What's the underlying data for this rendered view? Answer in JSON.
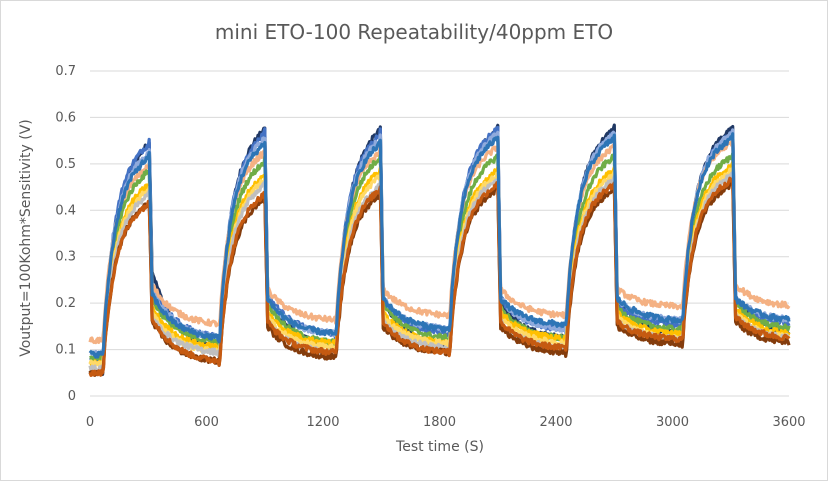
{
  "chart_data": {
    "type": "line",
    "title": "mini ETO-100 Repeatability/40ppm ETO",
    "xlabel": "Test time (S)",
    "ylabel": "Voutput=100Kohm*Sensitivity (V)",
    "xlim": [
      0,
      3600
    ],
    "ylim": [
      0,
      0.7
    ],
    "x_ticks": [
      0,
      600,
      1200,
      1800,
      2400,
      3000,
      3600
    ],
    "y_ticks": [
      0,
      0.1,
      0.2,
      0.3,
      0.4,
      0.5,
      0.6,
      0.7
    ],
    "y_tick_labels": [
      "0",
      "0.1",
      "0.2",
      "0.3",
      "0.4",
      "0.5",
      "0.6",
      "0.7"
    ],
    "grid": "horizontal",
    "legend": "none",
    "pulses": {
      "on_times": [
        65,
        665,
        1265,
        1850,
        2450,
        3050
      ],
      "off_times": [
        305,
        900,
        1495,
        2100,
        2700,
        3310
      ]
    },
    "series": [
      {
        "color": "#203864",
        "base": [
          0.05,
          0.09,
          0.1,
          0.1,
          0.12,
          0.13
        ],
        "peak": [
          0.55,
          0.58,
          0.58,
          0.58,
          0.58,
          0.58
        ],
        "tail_at_off": [
          0.27,
          0.22,
          0.21,
          0.2,
          0.21,
          0.21
        ]
      },
      {
        "color": "#4472c4",
        "base": [
          0.08,
          0.12,
          0.13,
          0.13,
          0.14,
          0.15
        ],
        "peak": [
          0.55,
          0.57,
          0.57,
          0.58,
          0.57,
          0.57
        ],
        "tail_at_off": [
          0.24,
          0.22,
          0.21,
          0.21,
          0.2,
          0.21
        ]
      },
      {
        "color": "#8faadc",
        "base": [
          0.09,
          0.12,
          0.13,
          0.14,
          0.14,
          0.16
        ],
        "peak": [
          0.53,
          0.56,
          0.56,
          0.57,
          0.57,
          0.57
        ],
        "tail_at_off": [
          0.23,
          0.21,
          0.21,
          0.21,
          0.21,
          0.21
        ]
      },
      {
        "color": "#f4b183",
        "base": [
          0.12,
          0.15,
          0.16,
          0.17,
          0.17,
          0.19
        ],
        "peak": [
          0.5,
          0.53,
          0.53,
          0.54,
          0.54,
          0.55
        ],
        "tail_at_off": [
          0.24,
          0.23,
          0.23,
          0.23,
          0.23,
          0.24
        ]
      },
      {
        "color": "#70ad47",
        "base": [
          0.08,
          0.11,
          0.11,
          0.12,
          0.12,
          0.14
        ],
        "peak": [
          0.49,
          0.51,
          0.52,
          0.52,
          0.52,
          0.52
        ],
        "tail_at_off": [
          0.21,
          0.2,
          0.2,
          0.19,
          0.19,
          0.2
        ]
      },
      {
        "color": "#ffc000",
        "base": [
          0.07,
          0.1,
          0.11,
          0.11,
          0.12,
          0.13
        ],
        "peak": [
          0.46,
          0.48,
          0.49,
          0.49,
          0.49,
          0.5
        ],
        "tail_at_off": [
          0.19,
          0.18,
          0.18,
          0.18,
          0.18,
          0.19
        ]
      },
      {
        "color": "#ffd966",
        "base": [
          0.07,
          0.09,
          0.1,
          0.11,
          0.11,
          0.12
        ],
        "peak": [
          0.45,
          0.47,
          0.48,
          0.48,
          0.48,
          0.49
        ],
        "tail_at_off": [
          0.18,
          0.17,
          0.17,
          0.17,
          0.17,
          0.18
        ]
      },
      {
        "color": "#bfbfbf",
        "base": [
          0.06,
          0.09,
          0.09,
          0.1,
          0.1,
          0.12
        ],
        "peak": [
          0.44,
          0.46,
          0.46,
          0.47,
          0.47,
          0.48
        ],
        "tail_at_off": [
          0.17,
          0.16,
          0.16,
          0.16,
          0.16,
          0.17
        ]
      },
      {
        "color": "#843c0c",
        "base": [
          0.05,
          0.07,
          0.08,
          0.09,
          0.09,
          0.11
        ],
        "peak": [
          0.42,
          0.43,
          0.44,
          0.45,
          0.45,
          0.46
        ],
        "tail_at_off": [
          0.16,
          0.15,
          0.15,
          0.15,
          0.15,
          0.16
        ]
      },
      {
        "color": "#c55a11",
        "base": [
          0.05,
          0.07,
          0.09,
          0.09,
          0.1,
          0.12
        ],
        "peak": [
          0.42,
          0.44,
          0.45,
          0.46,
          0.46,
          0.47
        ],
        "tail_at_off": [
          0.17,
          0.16,
          0.16,
          0.16,
          0.16,
          0.17
        ]
      },
      {
        "color": "#2e75b6",
        "base": [
          0.09,
          0.12,
          0.13,
          0.14,
          0.15,
          0.16
        ],
        "peak": [
          0.52,
          0.55,
          0.55,
          0.56,
          0.56,
          0.56
        ],
        "tail_at_off": [
          0.22,
          0.21,
          0.21,
          0.21,
          0.21,
          0.21
        ]
      }
    ]
  }
}
